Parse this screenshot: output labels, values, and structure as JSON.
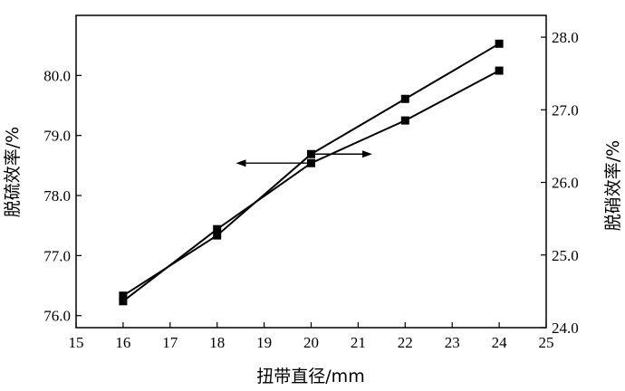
{
  "chart_data": {
    "type": "line",
    "xlabel": "扭带直径/mm",
    "ylabel_left": "脱硫效率/%",
    "ylabel_right": "脱硝效率/%",
    "xlim": [
      15,
      25
    ],
    "ylim_left": [
      75.8,
      81.0
    ],
    "ylim_right": [
      24.0,
      28.3
    ],
    "x_ticks": [
      "15",
      "16",
      "17",
      "18",
      "19",
      "20",
      "21",
      "22",
      "23",
      "24",
      "25"
    ],
    "y_left_ticks": [
      "76.0",
      "77.0",
      "78.0",
      "79.0",
      "80.0"
    ],
    "y_right_ticks": [
      "24.0",
      "25.0",
      "26.0",
      "27.0",
      "28.0"
    ],
    "grid": false,
    "series": [
      {
        "axis": "left",
        "x": [
          16,
          18,
          20,
          22,
          24
        ],
        "values": [
          76.24,
          77.44,
          78.54,
          79.25,
          80.08
        ]
      },
      {
        "axis": "right",
        "x": [
          16,
          18,
          20,
          22,
          24
        ],
        "values": [
          24.44,
          25.27,
          26.39,
          27.15,
          27.91
        ]
      }
    ],
    "annotations": [
      {
        "type": "arrow",
        "direction": "left",
        "points_to_axis": "left"
      },
      {
        "type": "arrow",
        "direction": "right",
        "points_to_axis": "right"
      }
    ]
  }
}
